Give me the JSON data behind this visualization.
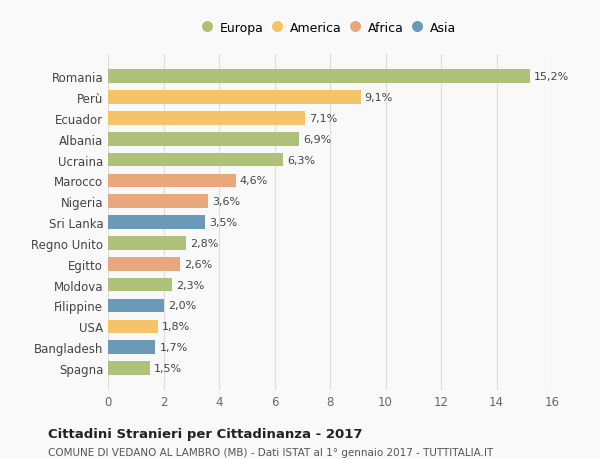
{
  "countries": [
    "Romania",
    "Perù",
    "Ecuador",
    "Albania",
    "Ucraina",
    "Marocco",
    "Nigeria",
    "Sri Lanka",
    "Regno Unito",
    "Egitto",
    "Moldova",
    "Filippine",
    "USA",
    "Bangladesh",
    "Spagna"
  ],
  "values": [
    15.2,
    9.1,
    7.1,
    6.9,
    6.3,
    4.6,
    3.6,
    3.5,
    2.8,
    2.6,
    2.3,
    2.0,
    1.8,
    1.7,
    1.5
  ],
  "labels": [
    "15,2%",
    "9,1%",
    "7,1%",
    "6,9%",
    "6,3%",
    "4,6%",
    "3,6%",
    "3,5%",
    "2,8%",
    "2,6%",
    "2,3%",
    "2,0%",
    "1,8%",
    "1,7%",
    "1,5%"
  ],
  "continents": [
    "Europa",
    "America",
    "America",
    "Europa",
    "Europa",
    "Africa",
    "Africa",
    "Asia",
    "Europa",
    "Africa",
    "Europa",
    "Asia",
    "America",
    "Asia",
    "Europa"
  ],
  "continent_colors": {
    "Europa": "#adc178",
    "America": "#f5c469",
    "Africa": "#e8a87c",
    "Asia": "#6b9ab8"
  },
  "legend_order": [
    "Europa",
    "America",
    "Africa",
    "Asia"
  ],
  "title": "Cittadini Stranieri per Cittadinanza - 2017",
  "subtitle": "COMUNE DI VEDANO AL LAMBRO (MB) - Dati ISTAT al 1° gennaio 2017 - TUTTITALIA.IT",
  "xlim": [
    0,
    16
  ],
  "xticks": [
    0,
    2,
    4,
    6,
    8,
    10,
    12,
    14,
    16
  ],
  "background_color": "#f9f9f9",
  "grid_color": "#dddddd",
  "bar_height": 0.65
}
